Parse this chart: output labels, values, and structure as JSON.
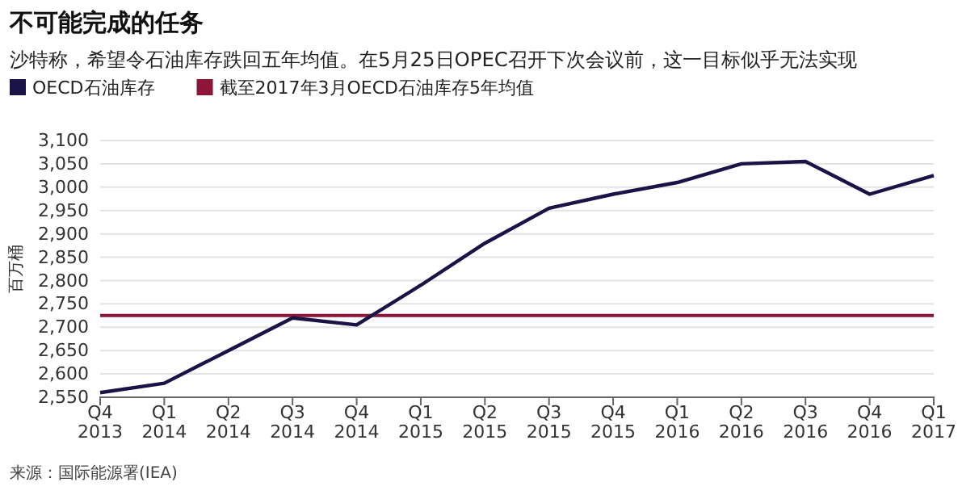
{
  "chart_data": {
    "type": "line",
    "title": "不可能完成的任务",
    "subtitle": "沙特称，希望令石油库存跌回五年均值。在5月25日OPEC召开下次会议前，这一目标似乎无法实现",
    "ylabel": "百万桶",
    "categories": [
      "Q4\n2013",
      "Q1\n2014",
      "Q2\n2014",
      "Q3\n2014",
      "Q4\n2014",
      "Q1\n2015",
      "Q2\n2015",
      "Q3\n2015",
      "Q4\n2015",
      "Q1\n2016",
      "Q2\n2016",
      "Q3\n2016",
      "Q4\n2016",
      "Q1\n2017"
    ],
    "series": [
      {
        "name": "OECD石油库存",
        "color": "#1a1446",
        "values": [
          2560,
          2580,
          2650,
          2720,
          2705,
          2790,
          2880,
          2955,
          2985,
          3010,
          3050,
          3055,
          2985,
          3025
        ]
      }
    ],
    "ref_lines": [
      {
        "axis": "y",
        "value": 2725,
        "label": "截至2017年3月OECD石油库存5年均值",
        "color": "#8c1538"
      }
    ],
    "ylim": [
      2550,
      3100
    ],
    "yticks": [
      {
        "value": 2550,
        "label": "2,550"
      },
      {
        "value": 2600,
        "label": "2,600"
      },
      {
        "value": 2650,
        "label": "2,650"
      },
      {
        "value": 2700,
        "label": "2,700"
      },
      {
        "value": 2750,
        "label": "2,750"
      },
      {
        "value": 2800,
        "label": "2,800"
      },
      {
        "value": 2850,
        "label": "2,850"
      },
      {
        "value": 2900,
        "label": "2,900"
      },
      {
        "value": 2950,
        "label": "2,950"
      },
      {
        "value": 3000,
        "label": "3,000"
      },
      {
        "value": 3050,
        "label": "3,050"
      },
      {
        "value": 3100,
        "label": "3,100"
      }
    ],
    "grid": "y",
    "legend": "top left",
    "marker": "none",
    "line_style": "solid",
    "annotations": [
      "来源：国际能源署(IEA)"
    ]
  }
}
